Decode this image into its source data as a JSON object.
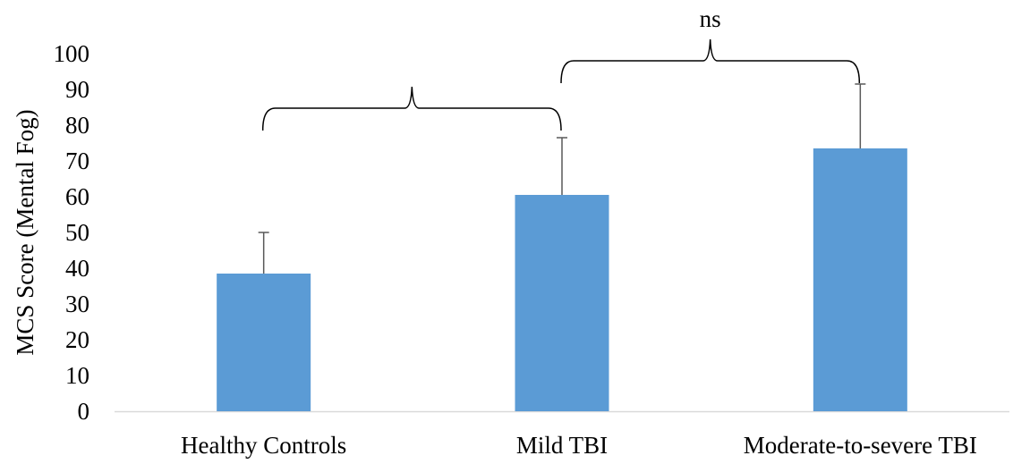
{
  "chart_data": {
    "type": "bar",
    "title": "",
    "xlabel": "",
    "ylabel": "MCS Score (Mental Fog)",
    "ylim": [
      0,
      100
    ],
    "yticks": [
      0,
      10,
      20,
      30,
      40,
      50,
      60,
      70,
      80,
      90,
      100
    ],
    "ytick_labels": [
      "0",
      "10",
      "20",
      "30",
      "40",
      "50",
      "60",
      "70",
      "80",
      "90",
      "100"
    ],
    "grid": false,
    "legend": "none",
    "categories": [
      "Healthy Controls",
      "Mild TBI",
      "Moderate-to-severe TBI"
    ],
    "values": [
      38.5,
      60.5,
      73.5
    ],
    "error_upper": [
      50,
      76.5,
      91.5
    ],
    "bar_color": "#5b9bd5",
    "error_color": "#595959",
    "annotations": [
      {
        "from_category": 0,
        "to_category": 1,
        "label": ""
      },
      {
        "from_category": 1,
        "to_category": 2,
        "label": "ns"
      }
    ]
  }
}
